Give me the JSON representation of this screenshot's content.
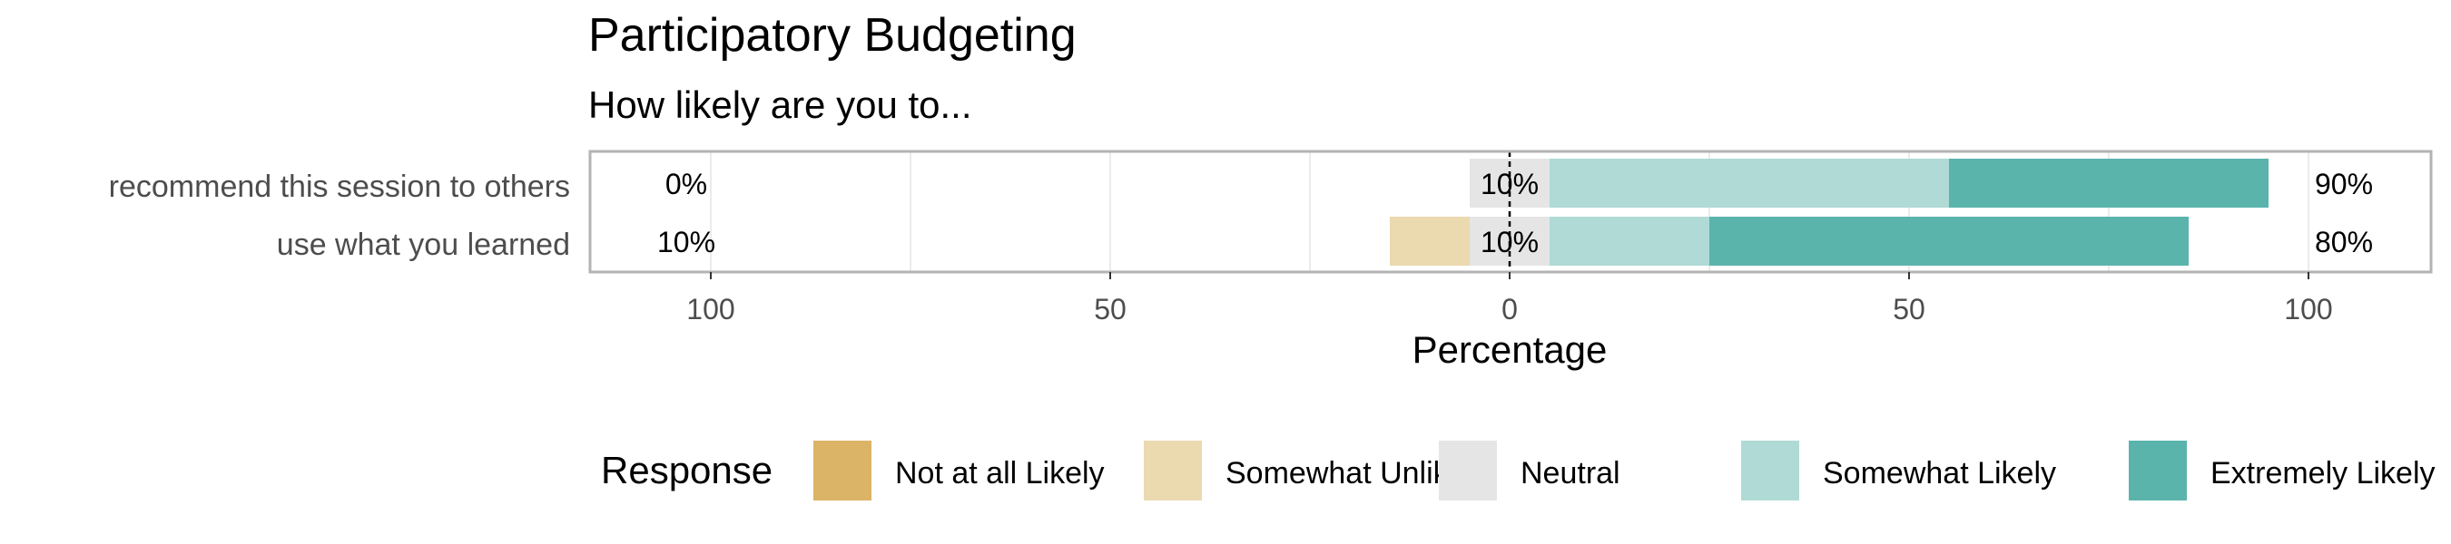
{
  "chart_data": {
    "type": "bar",
    "orientation": "horizontal",
    "stacked": "diverging",
    "title": "Participatory Budgeting",
    "subtitle": "How likely are you to...",
    "xlabel": "Percentage",
    "ylabel": "",
    "xlim": [
      -100,
      100
    ],
    "xticks": [
      -100,
      -50,
      0,
      50,
      100
    ],
    "xtick_labels": [
      "100",
      "50",
      "0",
      "50",
      "100"
    ],
    "grid": true,
    "legend_position": "bottom",
    "legend_title": "Response",
    "categories": [
      "recommend this session to others",
      "use what you learned"
    ],
    "series": [
      {
        "name": "Not at all Likely",
        "color": "#DBB467",
        "values": [
          0,
          0
        ]
      },
      {
        "name": "Somewhat Unlikely",
        "color": "#EBD9B0",
        "values": [
          0,
          10
        ]
      },
      {
        "name": "Neutral",
        "color": "#E5E5E5",
        "values": [
          10,
          10
        ]
      },
      {
        "name": "Somewhat Likely",
        "color": "#AFDAD6",
        "values": [
          50,
          20
        ]
      },
      {
        "name": "Extremely Likely",
        "color": "#5AB4AC",
        "values": [
          40,
          60
        ]
      }
    ],
    "left_labels": [
      "0%",
      "10%"
    ],
    "center_labels": [
      "10%",
      "10%"
    ],
    "right_labels": [
      "90%",
      "80%"
    ]
  }
}
